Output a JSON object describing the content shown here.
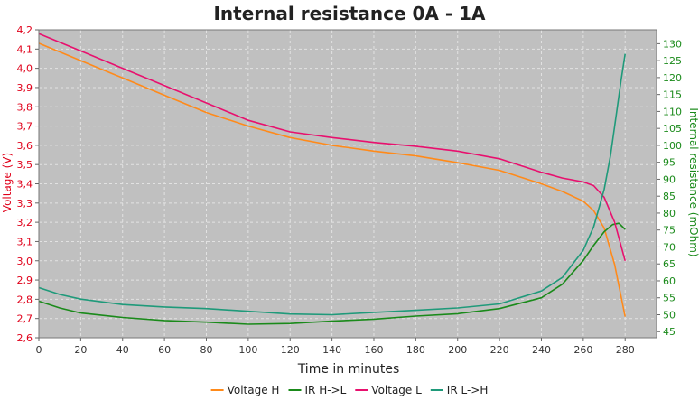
{
  "chart_data": {
    "type": "line",
    "title": "Internal resistance  0A - 1A",
    "xlabel": "Time in minutes",
    "ylabel_left": "Voltage (V)",
    "ylabel_right": "Internal resistance (mOhm)",
    "xlim": [
      0,
      295
    ],
    "ylim_left": [
      2.6,
      4.2
    ],
    "ylim_right": [
      43.2,
      134.1
    ],
    "x_ticks": [
      0,
      20,
      40,
      60,
      80,
      100,
      120,
      140,
      160,
      180,
      200,
      220,
      240,
      260,
      280
    ],
    "y_left_ticks": [
      "2,6",
      "2,7",
      "2,8",
      "2,9",
      "3,0",
      "3,1",
      "3,2",
      "3,3",
      "3,4",
      "3,5",
      "3,6",
      "3,7",
      "3,8",
      "3,9",
      "4,0",
      "4,1",
      "4,2"
    ],
    "y_right_ticks": [
      45,
      50,
      55,
      60,
      65,
      70,
      75,
      80,
      85,
      90,
      95,
      100,
      105,
      110,
      115,
      120,
      125,
      130
    ],
    "grid": true,
    "legend_position": "bottom",
    "colors": {
      "background": "#c0c0c0",
      "grid": "#e2e2e2",
      "left_axis": "#e0001a",
      "right_axis": "#1a8a1a"
    },
    "series": [
      {
        "name": "Voltage H",
        "axis": "left",
        "color": "#ff8a1a",
        "x": [
          0,
          20,
          40,
          60,
          80,
          100,
          120,
          140,
          160,
          180,
          200,
          220,
          240,
          250,
          260,
          265,
          270,
          275,
          280
        ],
        "y": [
          4.13,
          4.04,
          3.95,
          3.86,
          3.77,
          3.7,
          3.64,
          3.6,
          3.57,
          3.545,
          3.51,
          3.47,
          3.4,
          3.36,
          3.31,
          3.26,
          3.17,
          2.98,
          2.71
        ]
      },
      {
        "name": "IR H->L",
        "axis": "right",
        "color": "#1a8a1a",
        "x": [
          0,
          10,
          20,
          40,
          60,
          80,
          100,
          120,
          140,
          160,
          180,
          200,
          220,
          240,
          250,
          260,
          265,
          270,
          274,
          277,
          280
        ],
        "y": [
          54.0,
          52.0,
          50.5,
          49.2,
          48.3,
          47.8,
          47.2,
          47.4,
          48.1,
          48.7,
          49.6,
          50.3,
          51.8,
          55.0,
          59.0,
          66.0,
          70.5,
          74.5,
          76.6,
          77.0,
          75.2
        ]
      },
      {
        "name": "Voltage L",
        "axis": "left",
        "color": "#e8106e",
        "x": [
          0,
          20,
          40,
          60,
          80,
          100,
          120,
          140,
          160,
          180,
          200,
          220,
          240,
          250,
          260,
          265,
          270,
          275,
          280
        ],
        "y": [
          4.18,
          4.09,
          4.0,
          3.91,
          3.82,
          3.73,
          3.67,
          3.64,
          3.615,
          3.595,
          3.57,
          3.53,
          3.46,
          3.43,
          3.41,
          3.39,
          3.33,
          3.2,
          3.0
        ]
      },
      {
        "name": "IR L->H",
        "axis": "right",
        "color": "#1f9a7a",
        "x": [
          0,
          10,
          20,
          40,
          60,
          80,
          100,
          120,
          140,
          160,
          180,
          200,
          220,
          240,
          250,
          260,
          265,
          270,
          273,
          276,
          278,
          280
        ],
        "y": [
          58.0,
          56.0,
          54.6,
          53.0,
          52.3,
          51.8,
          51.0,
          50.2,
          50.0,
          50.7,
          51.3,
          52.0,
          53.2,
          57.0,
          61.0,
          69.0,
          76.0,
          87.0,
          97.0,
          110.0,
          119.0,
          127.0
        ]
      }
    ]
  }
}
